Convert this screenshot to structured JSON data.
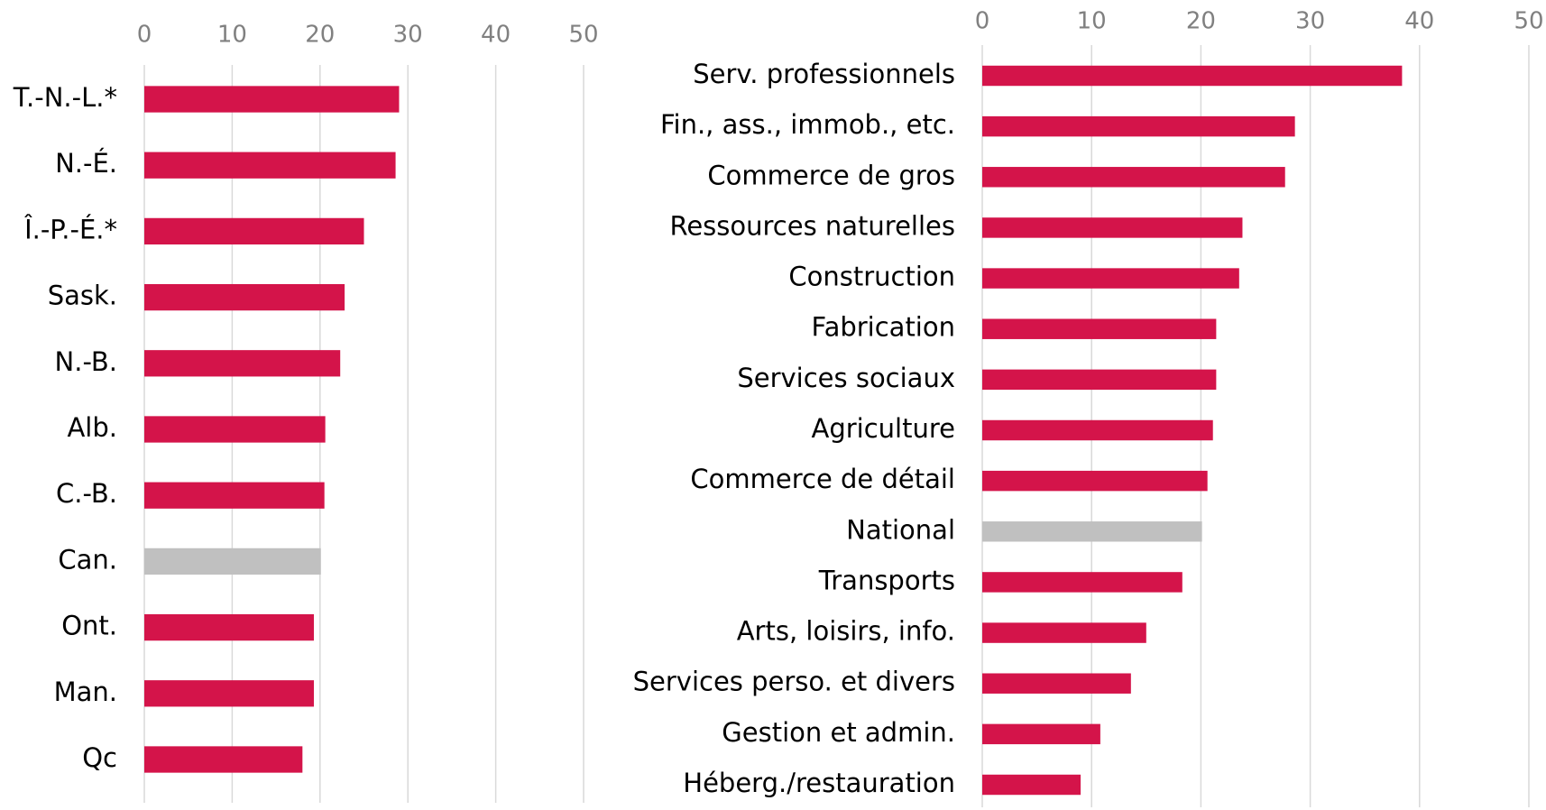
{
  "chart_data": [
    {
      "type": "barh",
      "categories": [
        "T.-N.-L.*",
        "N.-É.",
        "Î.-P.-É.*",
        "Sask.",
        "N.-B.",
        "Alb.",
        "C.-B.",
        "Can.",
        "Ont.",
        "Man.",
        "Qc"
      ],
      "values": [
        29.0,
        28.6,
        25.0,
        22.8,
        22.3,
        20.6,
        20.5,
        20.1,
        19.3,
        19.3,
        18.0
      ],
      "colors": [
        "#d4144a",
        "#d4144a",
        "#d4144a",
        "#d4144a",
        "#d4144a",
        "#d4144a",
        "#d4144a",
        "#c0c0c0",
        "#d4144a",
        "#d4144a",
        "#d4144a"
      ],
      "xlim": [
        0,
        50
      ],
      "xticks": [
        0,
        10,
        20,
        30,
        40,
        50
      ],
      "grid": true
    },
    {
      "type": "barh",
      "categories": [
        "Serv. professionnels",
        "Fin., ass., immob., etc.",
        "Commerce de gros",
        "Ressources naturelles",
        "Construction",
        "Fabrication",
        "Services sociaux",
        "Agriculture",
        "Commerce de détail",
        "National",
        "Transports",
        "Arts, loisirs, info.",
        "Services perso. et divers",
        "Gestion et admin.",
        "Héberg./restauration"
      ],
      "values": [
        38.4,
        28.6,
        27.7,
        23.8,
        23.5,
        21.4,
        21.4,
        21.1,
        20.6,
        20.1,
        18.3,
        15.0,
        13.6,
        10.8,
        9.0
      ],
      "colors": [
        "#d4144a",
        "#d4144a",
        "#d4144a",
        "#d4144a",
        "#d4144a",
        "#d4144a",
        "#d4144a",
        "#d4144a",
        "#d4144a",
        "#c0c0c0",
        "#d4144a",
        "#d4144a",
        "#d4144a",
        "#d4144a",
        "#d4144a"
      ],
      "xlim": [
        0,
        50
      ],
      "xticks": [
        0,
        10,
        20,
        30,
        40,
        50
      ],
      "grid": true
    }
  ]
}
